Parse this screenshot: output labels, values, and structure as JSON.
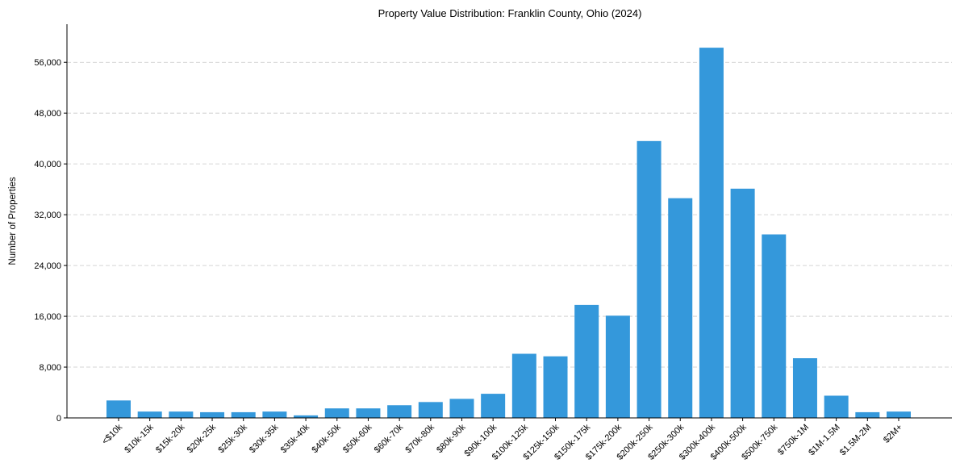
{
  "chart_data": {
    "type": "bar",
    "title": "Property Value Distribution: Franklin County, Ohio (2024)",
    "xlabel": "",
    "ylabel": "Number of Properties",
    "ylim": [
      0,
      62000
    ],
    "yticks": [
      0,
      8000,
      16000,
      24000,
      32000,
      40000,
      48000,
      56000
    ],
    "ytick_labels": [
      "0",
      "8,000",
      "16,000",
      "24,000",
      "32,000",
      "40,000",
      "48,000",
      "56,000"
    ],
    "grid": "y, dashed",
    "bar_color": "#3498db",
    "categories": [
      "<$10k",
      "$10k-15k",
      "$15k-20k",
      "$20k-25k",
      "$25k-30k",
      "$30k-35k",
      "$35k-40k",
      "$40k-50k",
      "$50k-60k",
      "$60k-70k",
      "$70k-80k",
      "$80k-90k",
      "$90k-100k",
      "$100k-125k",
      "$125k-150k",
      "$150k-175k",
      "$175k-200k",
      "$200k-250k",
      "$250k-300k",
      "$300k-400k",
      "$400k-500k",
      "$500k-750k",
      "$750k-1M",
      "$1M-1.5M",
      "$1.5M-2M",
      "$2M+"
    ],
    "values": [
      2750,
      1000,
      1000,
      900,
      900,
      1000,
      400,
      1500,
      1500,
      2000,
      2500,
      3000,
      3800,
      10100,
      9700,
      17800,
      16100,
      43600,
      34600,
      58300,
      36100,
      28900,
      9400,
      3500,
      900,
      1000
    ]
  }
}
